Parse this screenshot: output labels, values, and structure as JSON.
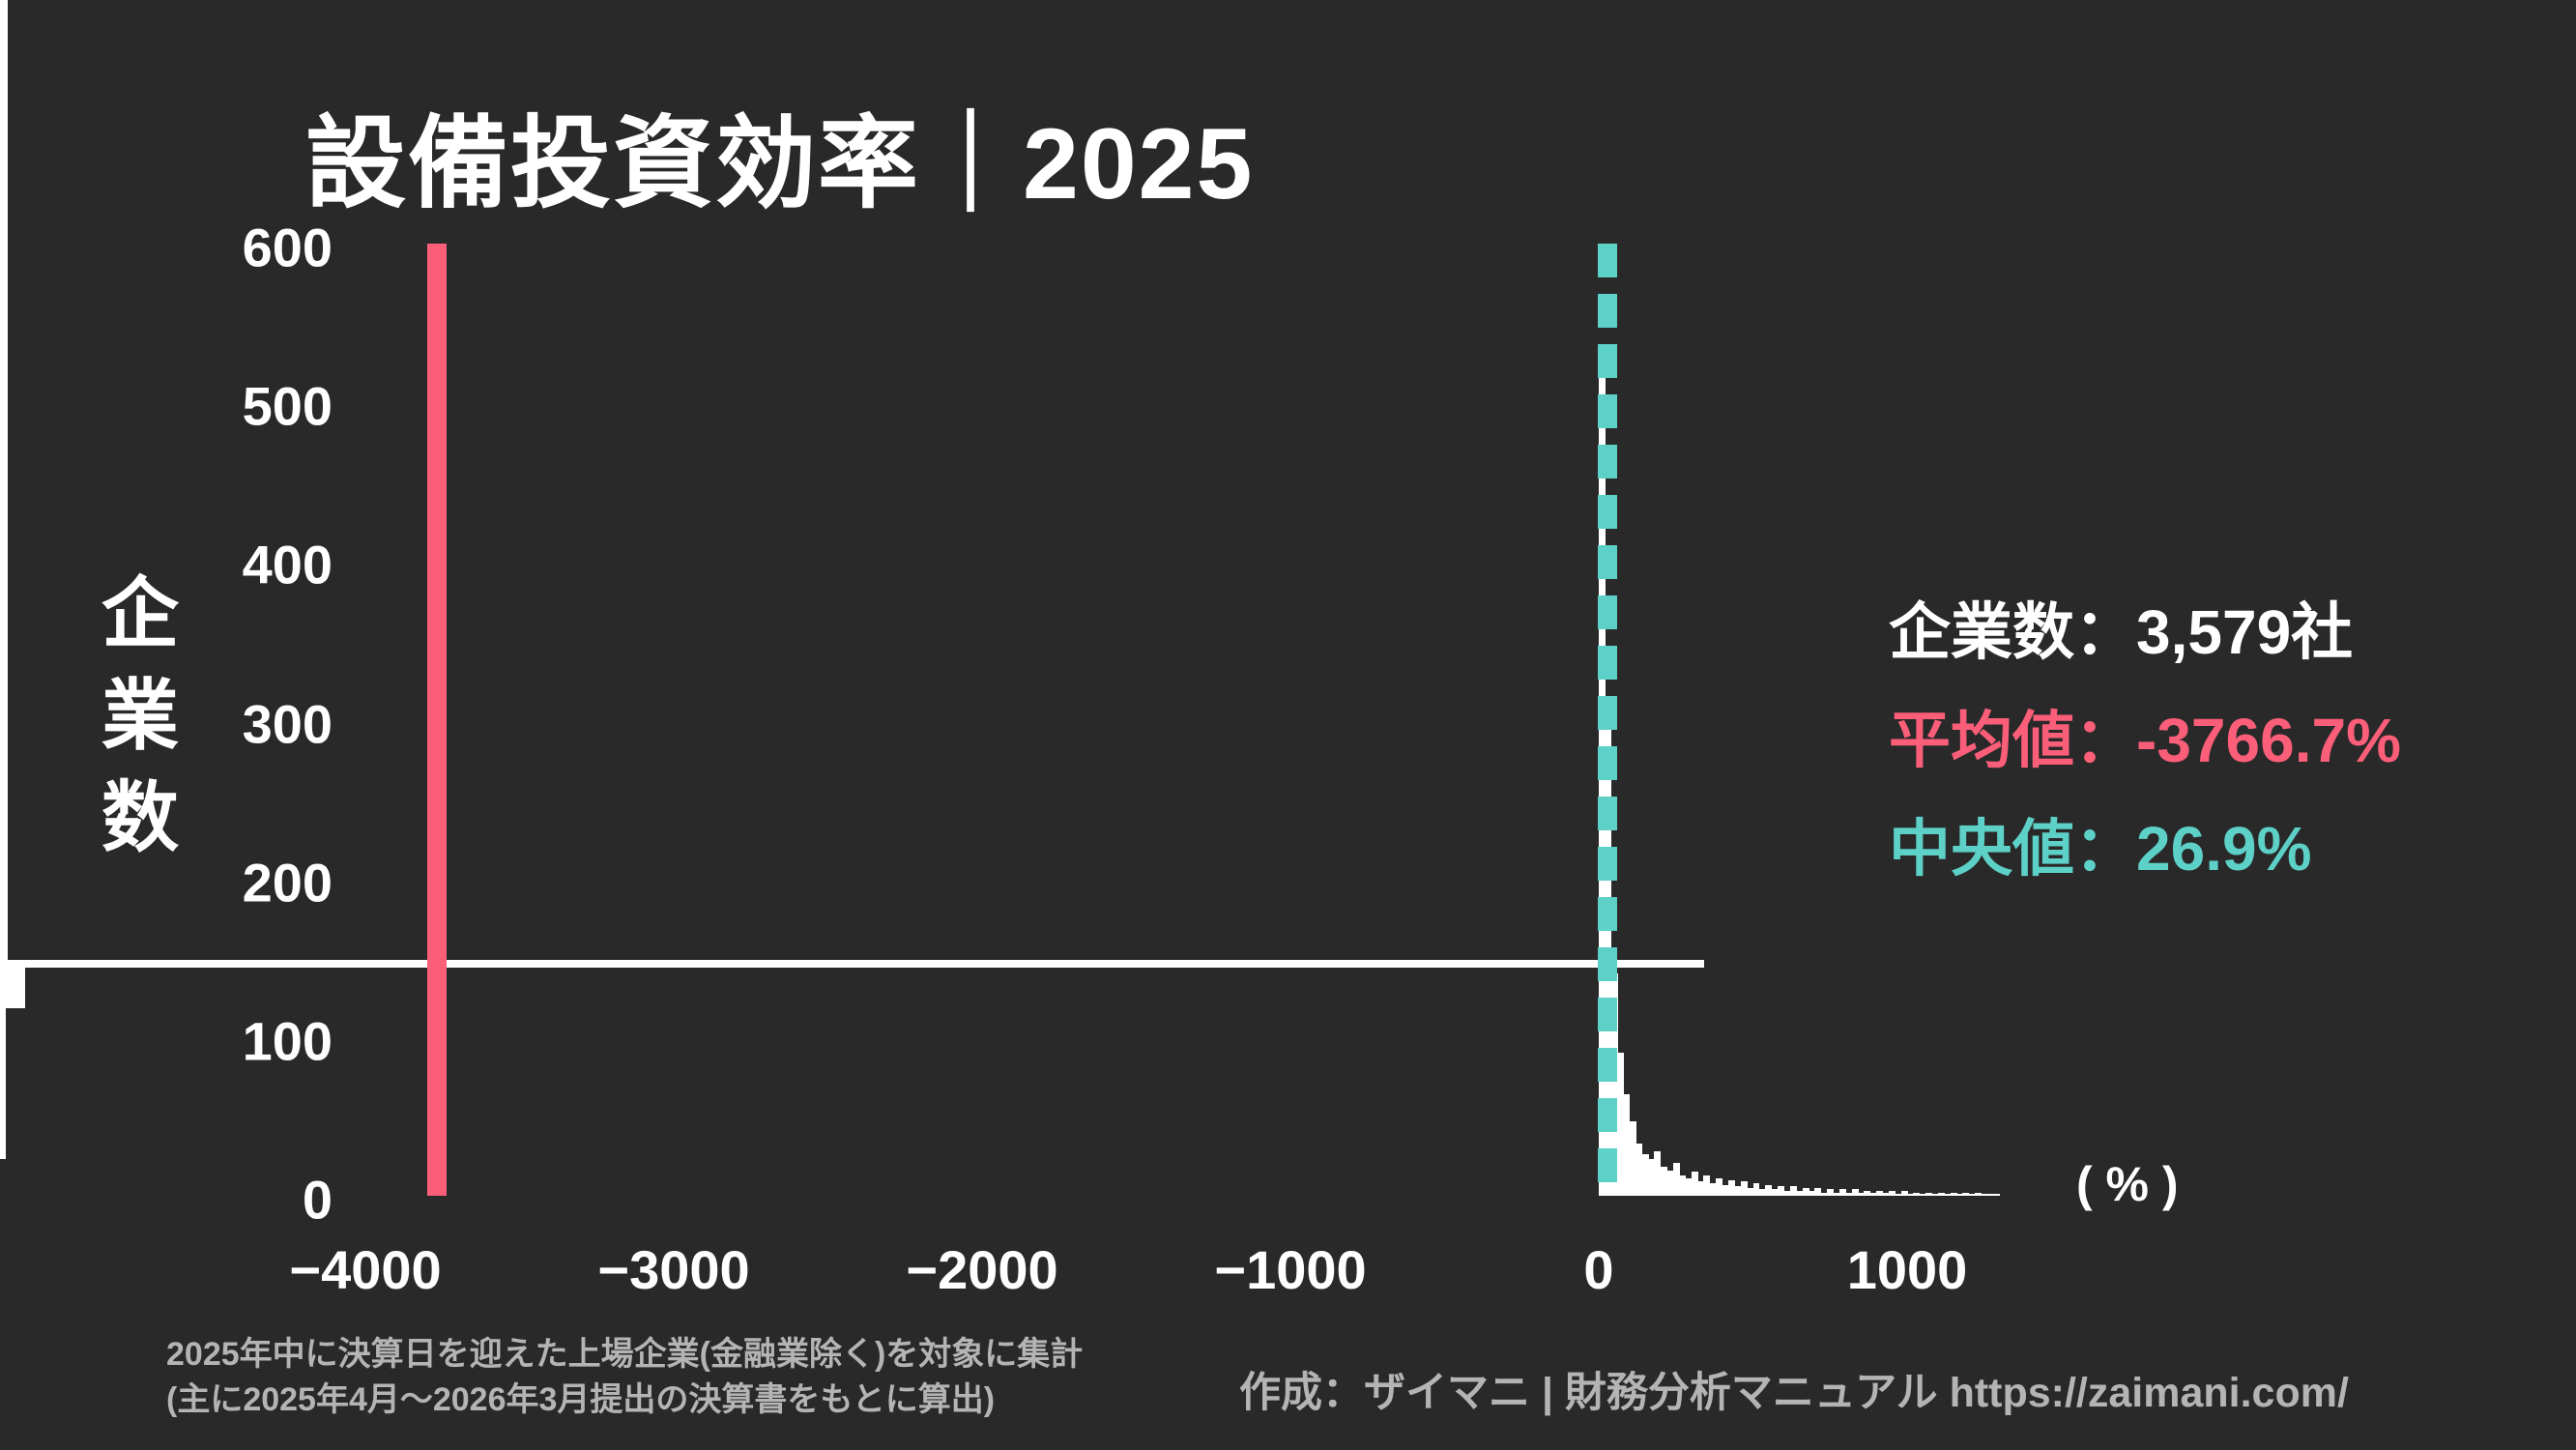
{
  "title": "設備投資効率｜2025",
  "stats": {
    "companies_label": "企業数：",
    "companies_value": "3,579社",
    "mean_label": "平均値：",
    "mean_value": "-3766.7%",
    "median_label": "中央値：",
    "median_value": "26.9%"
  },
  "footnote": {
    "line1": "2025年中に決算日を迎えた上場企業(金融業除く)を対象に集計",
    "line2": "(主に2025年4月～2026年3月提出の決算書をもとに算出)"
  },
  "credit": "作成：ザイマニ | 財務分析マニュアル https://zaimani.com/",
  "colors": {
    "background": "#292929",
    "bar": "#ffffff",
    "mean": "#fb5e79",
    "median": "#5dd0c7",
    "footnote": "#b4b4b4",
    "text": "#ffffff"
  },
  "chart_data": {
    "type": "bar",
    "subtype": "histogram",
    "title": "設備投資効率｜2025",
    "xlabel": "( % )",
    "ylabel": "企業数",
    "xlim": [
      -4030,
      1500
    ],
    "ylim": [
      0,
      600
    ],
    "grid": false,
    "x_ticks": [
      {
        "value": -4000,
        "label": "−4000"
      },
      {
        "value": -3000,
        "label": "−3000"
      },
      {
        "value": -2000,
        "label": "−2000"
      },
      {
        "value": -1000,
        "label": "−1000"
      },
      {
        "value": 0,
        "label": "0"
      },
      {
        "value": 1000,
        "label": "1000"
      }
    ],
    "y_ticks": [
      {
        "value": 0,
        "label": "0"
      },
      {
        "value": 100,
        "label": "100"
      },
      {
        "value": 200,
        "label": "200"
      },
      {
        "value": 300,
        "label": "300"
      },
      {
        "value": 400,
        "label": "400"
      },
      {
        "value": 500,
        "label": "500"
      },
      {
        "value": 600,
        "label": "600"
      }
    ],
    "histogram": {
      "bin_start": 0,
      "bin_width": 20,
      "heights": [
        525,
        310,
        140,
        90,
        64,
        47,
        33,
        26,
        23,
        28,
        18,
        16,
        21,
        13,
        11,
        15,
        9,
        13,
        8,
        11,
        7,
        10,
        6,
        9,
        5,
        8,
        4,
        7,
        4,
        6,
        3,
        6,
        3,
        5,
        3,
        5,
        2,
        4,
        2,
        4,
        2,
        4,
        2,
        3,
        2,
        3,
        2,
        3,
        1,
        3,
        1,
        2,
        1,
        2,
        1,
        2,
        1,
        2,
        1,
        2,
        1,
        2,
        1,
        1,
        1
      ]
    },
    "markers": [
      {
        "name": "mean",
        "label": "平均値",
        "value": -3766.7,
        "style": "solid",
        "color": "#fb5e79"
      },
      {
        "name": "median",
        "label": "中央値",
        "value": 26.9,
        "style": "dashed",
        "color": "#5dd0c7"
      }
    ],
    "total_companies": 3579,
    "mean": -3766.7,
    "median": 26.9
  }
}
